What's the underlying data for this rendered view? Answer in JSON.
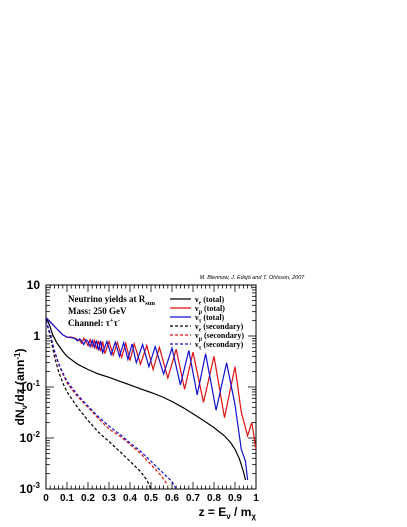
{
  "credit": "M. Blennow, J. Edsjö and T. Ohlsson, 2007",
  "info": {
    "title_main": "Neutrino yields at R",
    "title_sub": "sun",
    "mass": "Mass: 250 GeV",
    "channel_main": "Channel: τ",
    "channel_sup1": "+",
    "channel_mid": "τ",
    "channel_sup2": "-"
  },
  "colors": {
    "e": "#000000",
    "mu": "#e01010",
    "tau": "#1010d0"
  },
  "chart_data": {
    "type": "line",
    "x_axis": {
      "label_main": "z = E",
      "label_nu_sub": "ν",
      "label_mid": " / m",
      "label_chi_sub": "χ",
      "range": [
        0,
        1
      ],
      "ticks": [
        {
          "v": 0,
          "t": "0"
        },
        {
          "v": 0.1,
          "t": "0.1"
        },
        {
          "v": 0.2,
          "t": "0.2"
        },
        {
          "v": 0.3,
          "t": "0.3"
        },
        {
          "v": 0.4,
          "t": "0.4"
        },
        {
          "v": 0.5,
          "t": "0.5"
        },
        {
          "v": 0.6,
          "t": "0.6"
        },
        {
          "v": 0.7,
          "t": "0.7"
        },
        {
          "v": 0.8,
          "t": "0.8"
        },
        {
          "v": 0.9,
          "t": "0.9"
        },
        {
          "v": 1,
          "t": "1"
        }
      ]
    },
    "y_axis": {
      "label_main": "dN",
      "label_sub": "ν",
      "label_rest": "/dz (ann",
      "label_sup": "-1",
      "label_end": ")",
      "scale": "log",
      "range": [
        0.001,
        10
      ],
      "ticks": [
        {
          "v": 10,
          "base": "10",
          "exp": ""
        },
        {
          "v": 1,
          "base": "1",
          "exp": ""
        },
        {
          "v": 0.1,
          "base": "10",
          "exp": "-1"
        },
        {
          "v": 0.01,
          "base": "10",
          "exp": "-2"
        },
        {
          "v": 0.001,
          "base": "10",
          "exp": "-3"
        }
      ]
    },
    "legend_position": "top-right",
    "series": [
      {
        "name": "ν",
        "name_sub": "e",
        "name_rest": " (total)",
        "color": "#000000",
        "dashed": false,
        "points": [
          [
            0,
            2.2
          ],
          [
            0.01,
            1.9
          ],
          [
            0.02,
            1.5
          ],
          [
            0.03,
            1.1
          ],
          [
            0.05,
            0.75
          ],
          [
            0.08,
            0.5
          ],
          [
            0.1,
            0.4
          ],
          [
            0.15,
            0.28
          ],
          [
            0.2,
            0.22
          ],
          [
            0.25,
            0.18
          ],
          [
            0.3,
            0.155
          ],
          [
            0.35,
            0.13
          ],
          [
            0.4,
            0.11
          ],
          [
            0.45,
            0.092
          ],
          [
            0.5,
            0.078
          ],
          [
            0.55,
            0.065
          ],
          [
            0.6,
            0.052
          ],
          [
            0.65,
            0.04
          ],
          [
            0.7,
            0.03
          ],
          [
            0.75,
            0.022
          ],
          [
            0.8,
            0.016
          ],
          [
            0.85,
            0.011
          ],
          [
            0.88,
            0.008
          ],
          [
            0.9,
            0.006
          ],
          [
            0.92,
            0.004
          ],
          [
            0.93,
            0.003
          ],
          [
            0.94,
            0.0022
          ],
          [
            0.95,
            0.0015
          ]
        ]
      },
      {
        "name": "ν",
        "name_sub": "μ",
        "name_rest": " (total)",
        "color": "#e01010",
        "dashed": false,
        "points": [
          [
            0,
            2.3
          ],
          [
            0.02,
            1.9
          ],
          [
            0.05,
            1.4
          ],
          [
            0.08,
            1.05
          ],
          [
            0.1,
            0.95
          ],
          [
            0.12,
            0.95
          ],
          [
            0.14,
            0.9
          ],
          [
            0.15,
            0.85
          ],
          [
            0.16,
            0.82
          ],
          [
            0.17,
            0.72
          ],
          [
            0.18,
            0.9
          ],
          [
            0.19,
            0.78
          ],
          [
            0.2,
            0.65
          ],
          [
            0.21,
            0.85
          ],
          [
            0.22,
            0.62
          ],
          [
            0.23,
            0.82
          ],
          [
            0.24,
            0.55
          ],
          [
            0.25,
            0.8
          ],
          [
            0.26,
            0.5
          ],
          [
            0.27,
            0.78
          ],
          [
            0.28,
            0.45
          ],
          [
            0.3,
            0.78
          ],
          [
            0.32,
            0.42
          ],
          [
            0.34,
            0.75
          ],
          [
            0.36,
            0.38
          ],
          [
            0.38,
            0.72
          ],
          [
            0.4,
            0.33
          ],
          [
            0.42,
            0.7
          ],
          [
            0.45,
            0.28
          ],
          [
            0.48,
            0.65
          ],
          [
            0.51,
            0.22
          ],
          [
            0.54,
            0.6
          ],
          [
            0.58,
            0.15
          ],
          [
            0.62,
            0.55
          ],
          [
            0.66,
            0.09
          ],
          [
            0.7,
            0.48
          ],
          [
            0.75,
            0.05
          ],
          [
            0.8,
            0.4
          ],
          [
            0.85,
            0.025
          ],
          [
            0.9,
            0.25
          ],
          [
            0.93,
            0.032
          ],
          [
            0.96,
            0.011
          ],
          [
            0.98,
            0.02
          ],
          [
            1,
            0.006
          ]
        ]
      },
      {
        "name": "ν",
        "name_sub": "τ",
        "name_rest": " (total)",
        "color": "#1010d0",
        "dashed": false,
        "points": [
          [
            0,
            2.3
          ],
          [
            0.02,
            1.9
          ],
          [
            0.05,
            1.4
          ],
          [
            0.08,
            1.05
          ],
          [
            0.1,
            0.95
          ],
          [
            0.12,
            0.93
          ],
          [
            0.14,
            0.88
          ],
          [
            0.15,
            0.8
          ],
          [
            0.16,
            0.88
          ],
          [
            0.17,
            0.8
          ],
          [
            0.18,
            0.68
          ],
          [
            0.19,
            0.85
          ],
          [
            0.2,
            0.78
          ],
          [
            0.21,
            0.62
          ],
          [
            0.22,
            0.82
          ],
          [
            0.23,
            0.6
          ],
          [
            0.24,
            0.82
          ],
          [
            0.25,
            0.52
          ],
          [
            0.26,
            0.8
          ],
          [
            0.27,
            0.47
          ],
          [
            0.29,
            0.78
          ],
          [
            0.31,
            0.43
          ],
          [
            0.33,
            0.76
          ],
          [
            0.35,
            0.4
          ],
          [
            0.37,
            0.74
          ],
          [
            0.39,
            0.35
          ],
          [
            0.41,
            0.7
          ],
          [
            0.43,
            0.3
          ],
          [
            0.46,
            0.68
          ],
          [
            0.49,
            0.25
          ],
          [
            0.52,
            0.62
          ],
          [
            0.56,
            0.18
          ],
          [
            0.6,
            0.58
          ],
          [
            0.64,
            0.11
          ],
          [
            0.68,
            0.52
          ],
          [
            0.72,
            0.07
          ],
          [
            0.76,
            0.45
          ],
          [
            0.81,
            0.035
          ],
          [
            0.86,
            0.3
          ],
          [
            0.9,
            0.045
          ],
          [
            0.93,
            0.006
          ],
          [
            0.95,
            0.0035
          ],
          [
            0.96,
            0.0015
          ]
        ]
      },
      {
        "name": "ν",
        "name_sub": "e",
        "name_rest": " (secondary)",
        "color": "#000000",
        "dashed": true,
        "points": [
          [
            0,
            2.0
          ],
          [
            0.02,
            1.0
          ],
          [
            0.04,
            0.4
          ],
          [
            0.06,
            0.2
          ],
          [
            0.08,
            0.12
          ],
          [
            0.1,
            0.08
          ],
          [
            0.15,
            0.04
          ],
          [
            0.2,
            0.022
          ],
          [
            0.25,
            0.013
          ],
          [
            0.3,
            0.0085
          ],
          [
            0.35,
            0.0055
          ],
          [
            0.4,
            0.0035
          ],
          [
            0.45,
            0.0022
          ],
          [
            0.48,
            0.0015
          ],
          [
            0.5,
            0.001
          ]
        ]
      },
      {
        "name": "ν",
        "name_sub": "μ",
        "name_rest": " (secondary)",
        "color": "#e01010",
        "dashed": true,
        "points": [
          [
            0,
            2.0
          ],
          [
            0.02,
            1.1
          ],
          [
            0.04,
            0.5
          ],
          [
            0.06,
            0.28
          ],
          [
            0.08,
            0.18
          ],
          [
            0.1,
            0.12
          ],
          [
            0.15,
            0.065
          ],
          [
            0.2,
            0.04
          ],
          [
            0.25,
            0.024
          ],
          [
            0.3,
            0.015
          ],
          [
            0.35,
            0.011
          ],
          [
            0.4,
            0.0075
          ],
          [
            0.45,
            0.005
          ],
          [
            0.5,
            0.003
          ],
          [
            0.55,
            0.0018
          ],
          [
            0.58,
            0.0012
          ]
        ]
      },
      {
        "name": "ν",
        "name_sub": "τ",
        "name_rest": " (secondary)",
        "color": "#1010d0",
        "dashed": true,
        "points": [
          [
            0,
            2.0
          ],
          [
            0.02,
            1.1
          ],
          [
            0.04,
            0.52
          ],
          [
            0.06,
            0.29
          ],
          [
            0.08,
            0.19
          ],
          [
            0.1,
            0.13
          ],
          [
            0.15,
            0.07
          ],
          [
            0.2,
            0.042
          ],
          [
            0.25,
            0.026
          ],
          [
            0.3,
            0.017
          ],
          [
            0.35,
            0.012
          ],
          [
            0.4,
            0.008
          ],
          [
            0.45,
            0.0055
          ],
          [
            0.5,
            0.0035
          ],
          [
            0.55,
            0.0022
          ],
          [
            0.6,
            0.0014
          ],
          [
            0.62,
            0.001
          ]
        ]
      }
    ]
  }
}
